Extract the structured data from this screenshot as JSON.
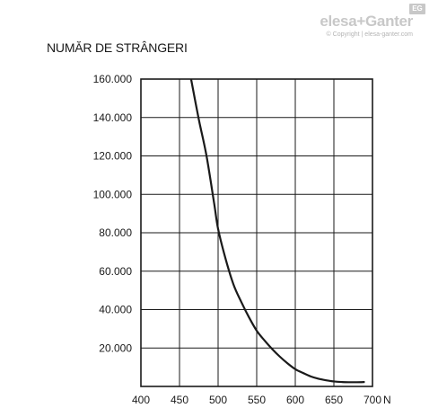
{
  "brand": {
    "logo": "elesa+Ganter",
    "badge": "EG",
    "copyright": "© Copyright | elesa-ganter.com"
  },
  "chart_data": {
    "type": "line",
    "ylabel": "NUMĂR DE STRÂNGERI",
    "xlabel": "",
    "x_unit": "N",
    "xlim": [
      400,
      700
    ],
    "ylim": [
      0,
      160000
    ],
    "x_ticks": [
      400,
      450,
      500,
      550,
      600,
      650,
      700
    ],
    "x_tick_labels": [
      "400",
      "450",
      "500",
      "550",
      "600",
      "650",
      "700"
    ],
    "y_ticks": [
      20000,
      40000,
      60000,
      80000,
      100000,
      120000,
      140000,
      160000
    ],
    "y_tick_labels": [
      "20.000",
      "40.000",
      "60.000",
      "80.000",
      "100.000",
      "120.000",
      "140.000",
      "160.000"
    ],
    "grid": true,
    "series": [
      {
        "x": [
          465,
          475,
          485,
          495,
          500,
          510,
          520,
          530,
          540,
          550,
          560,
          570,
          580,
          590,
          600,
          610,
          620,
          630,
          640,
          650,
          660,
          670,
          680,
          690
        ],
        "y": [
          160000,
          139000,
          120000,
          95000,
          82000,
          66000,
          53000,
          44000,
          36000,
          29000,
          24000,
          19500,
          15500,
          12000,
          9000,
          7000,
          5200,
          4000,
          3200,
          2600,
          2300,
          2200,
          2200,
          2300
        ]
      }
    ]
  }
}
